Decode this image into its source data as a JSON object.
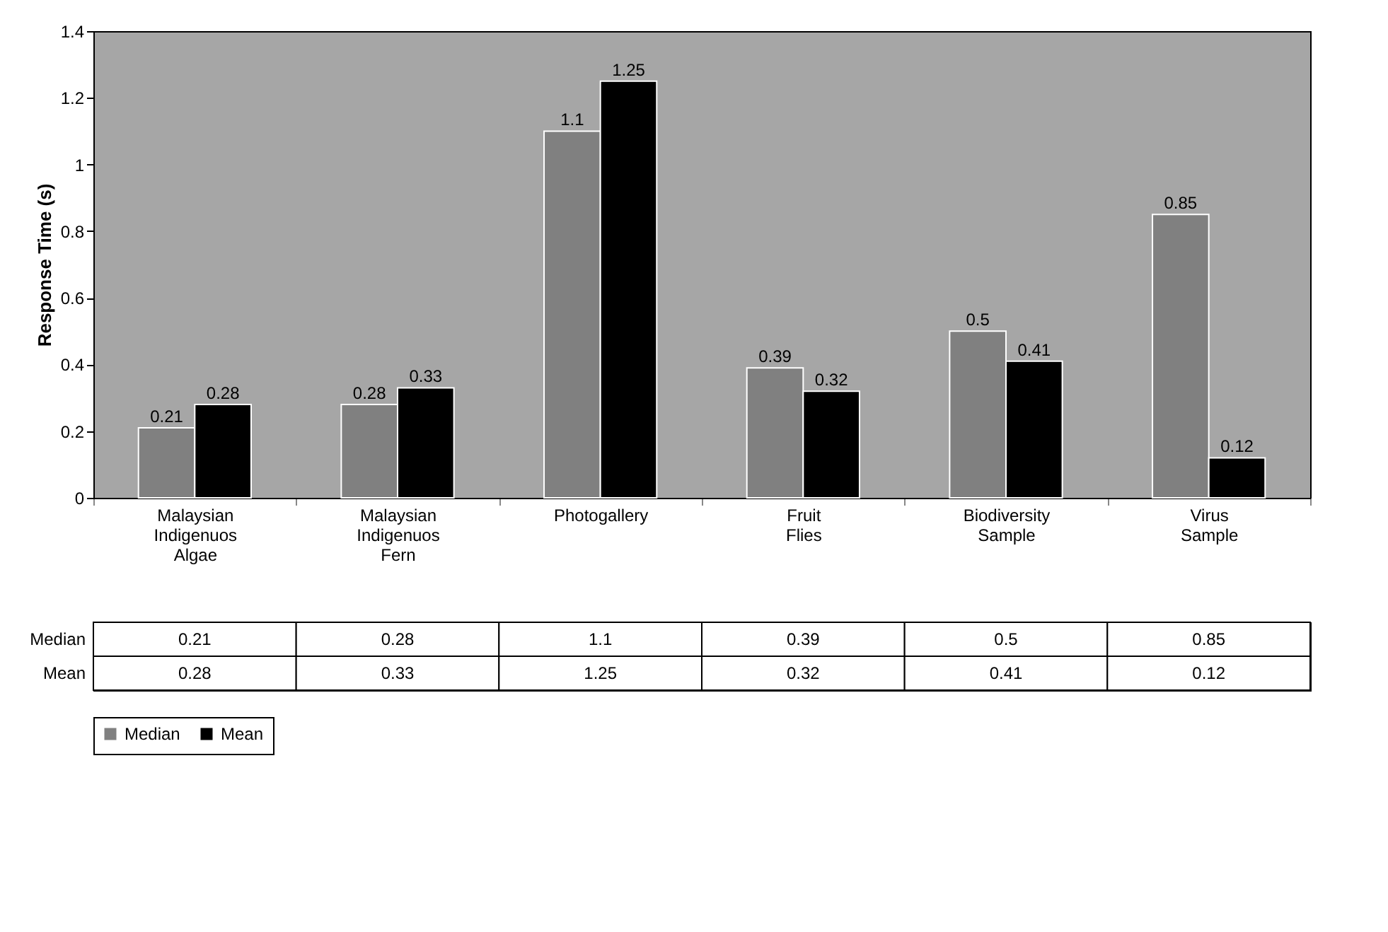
{
  "chart_data": {
    "type": "bar",
    "ylabel": "Response Time (s)",
    "categories": [
      "Malaysian Indigenuos Algae",
      "Malaysian Indigenuos Fern",
      "Photogallery",
      "Fruit Flies",
      "Biodiversity Sample",
      "Virus Sample"
    ],
    "series": [
      {
        "name": "Median",
        "color": "#808080",
        "values": [
          0.21,
          0.28,
          1.1,
          0.39,
          0.5,
          0.85
        ],
        "value_labels": [
          "0.21",
          "0.28",
          "1.1",
          "0.39",
          "0.5",
          "0.85"
        ]
      },
      {
        "name": "Mean",
        "color": "#000000",
        "values": [
          0.28,
          0.33,
          1.25,
          0.32,
          0.41,
          0.12
        ],
        "value_labels": [
          "0.28",
          "0.33",
          "1.25",
          "0.32",
          "0.41",
          "0.12"
        ]
      }
    ],
    "ylim": [
      0,
      1.4
    ],
    "yticks": [
      0,
      0.2,
      0.4,
      0.6,
      0.8,
      1,
      1.2,
      1.4
    ],
    "legend": "bottom"
  }
}
